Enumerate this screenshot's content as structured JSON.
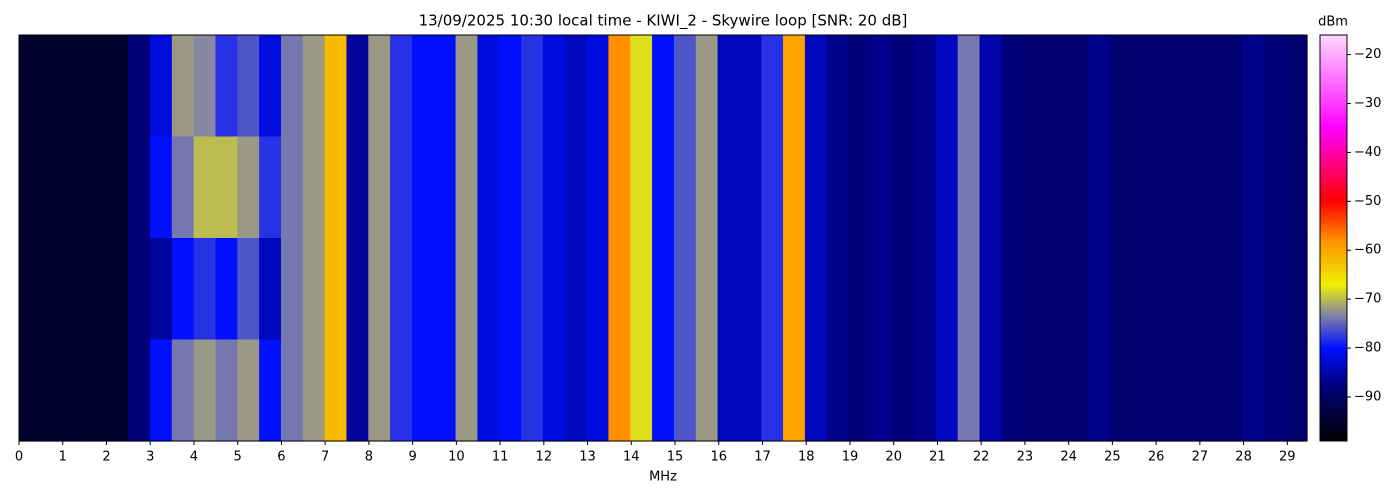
{
  "chart_data": {
    "type": "heatmap",
    "title": "13/09/2025 10:30 local time - KIWI_2 - Skywire loop [SNR: 20 dB]",
    "x_label": "MHz",
    "xlim": [
      0,
      29.45
    ],
    "xticks": [
      0,
      1,
      2,
      3,
      4,
      5,
      6,
      7,
      8,
      9,
      10,
      11,
      12,
      13,
      14,
      15,
      16,
      17,
      18,
      19,
      20,
      21,
      22,
      23,
      24,
      25,
      26,
      27,
      28,
      29
    ],
    "values": [
      [
        -95,
        -95,
        -95,
        -95,
        -95,
        -88,
        -82,
        -72,
        -73,
        -78,
        -76,
        -82,
        -74,
        -72,
        -62,
        -86,
        -72,
        -78,
        -80,
        -80,
        -72,
        -82,
        -80,
        -78,
        -82,
        -84,
        -82,
        -58,
        -68,
        -80,
        -76,
        -72,
        -84,
        -84,
        -78,
        -60,
        -84,
        -87,
        -88,
        -87,
        -88,
        -87,
        -84,
        -74,
        -85,
        -88,
        -89,
        -89,
        -89,
        -87,
        -89,
        -89,
        -89,
        -89,
        -89,
        -89,
        -87,
        -88,
        -89
      ],
      [
        -95,
        -95,
        -95,
        -95,
        -95,
        -88,
        -80,
        -74,
        -70,
        -70,
        -72,
        -78,
        -74,
        -72,
        -62,
        -86,
        -72,
        -78,
        -80,
        -80,
        -72,
        -82,
        -80,
        -78,
        -82,
        -84,
        -82,
        -58,
        -68,
        -80,
        -76,
        -72,
        -84,
        -84,
        -78,
        -60,
        -84,
        -87,
        -88,
        -87,
        -88,
        -87,
        -84,
        -74,
        -85,
        -88,
        -89,
        -89,
        -89,
        -87,
        -89,
        -89,
        -89,
        -89,
        -89,
        -89,
        -87,
        -88,
        -89
      ],
      [
        -95,
        -95,
        -95,
        -95,
        -95,
        -88,
        -86,
        -80,
        -78,
        -80,
        -76,
        -84,
        -74,
        -72,
        -62,
        -86,
        -72,
        -78,
        -80,
        -80,
        -72,
        -82,
        -80,
        -78,
        -82,
        -84,
        -82,
        -58,
        -68,
        -80,
        -76,
        -72,
        -84,
        -84,
        -78,
        -60,
        -84,
        -87,
        -88,
        -87,
        -88,
        -87,
        -84,
        -74,
        -85,
        -88,
        -89,
        -89,
        -89,
        -87,
        -89,
        -89,
        -89,
        -89,
        -89,
        -89,
        -87,
        -88,
        -89
      ],
      [
        -95,
        -95,
        -95,
        -95,
        -95,
        -88,
        -80,
        -74,
        -72,
        -74,
        -72,
        -80,
        -74,
        -72,
        -62,
        -86,
        -72,
        -78,
        -80,
        -80,
        -72,
        -82,
        -80,
        -78,
        -82,
        -84,
        -82,
        -58,
        -68,
        -80,
        -76,
        -72,
        -84,
        -84,
        -78,
        -60,
        -84,
        -87,
        -88,
        -87,
        -88,
        -87,
        -84,
        -74,
        -85,
        -88,
        -89,
        -89,
        -89,
        -87,
        -89,
        -89,
        -89,
        -89,
        -89,
        -89,
        -87,
        -88,
        -89
      ]
    ],
    "colorbar": {
      "label": "dBm",
      "lim": [
        -99,
        -16
      ],
      "ticks": [
        {
          "value": -90,
          "label": "−90"
        },
        {
          "value": -80,
          "label": "−80"
        },
        {
          "value": -70,
          "label": "−70"
        },
        {
          "value": -60,
          "label": "−60"
        },
        {
          "value": -50,
          "label": "−50"
        },
        {
          "value": -40,
          "label": "−40"
        },
        {
          "value": -30,
          "label": "−30"
        },
        {
          "value": -20,
          "label": "−20"
        }
      ],
      "colormap": [
        {
          "value": -99,
          "color": "#000000"
        },
        {
          "value": -88,
          "color": "#00007a"
        },
        {
          "value": -80,
          "color": "#0010ff"
        },
        {
          "value": -73,
          "color": "#8888a0"
        },
        {
          "value": -67,
          "color": "#f0f000"
        },
        {
          "value": -58,
          "color": "#ff9000"
        },
        {
          "value": -50,
          "color": "#ff0000"
        },
        {
          "value": -35,
          "color": "#ff00ff"
        },
        {
          "value": -16,
          "color": "#ffd8ff"
        }
      ]
    }
  }
}
